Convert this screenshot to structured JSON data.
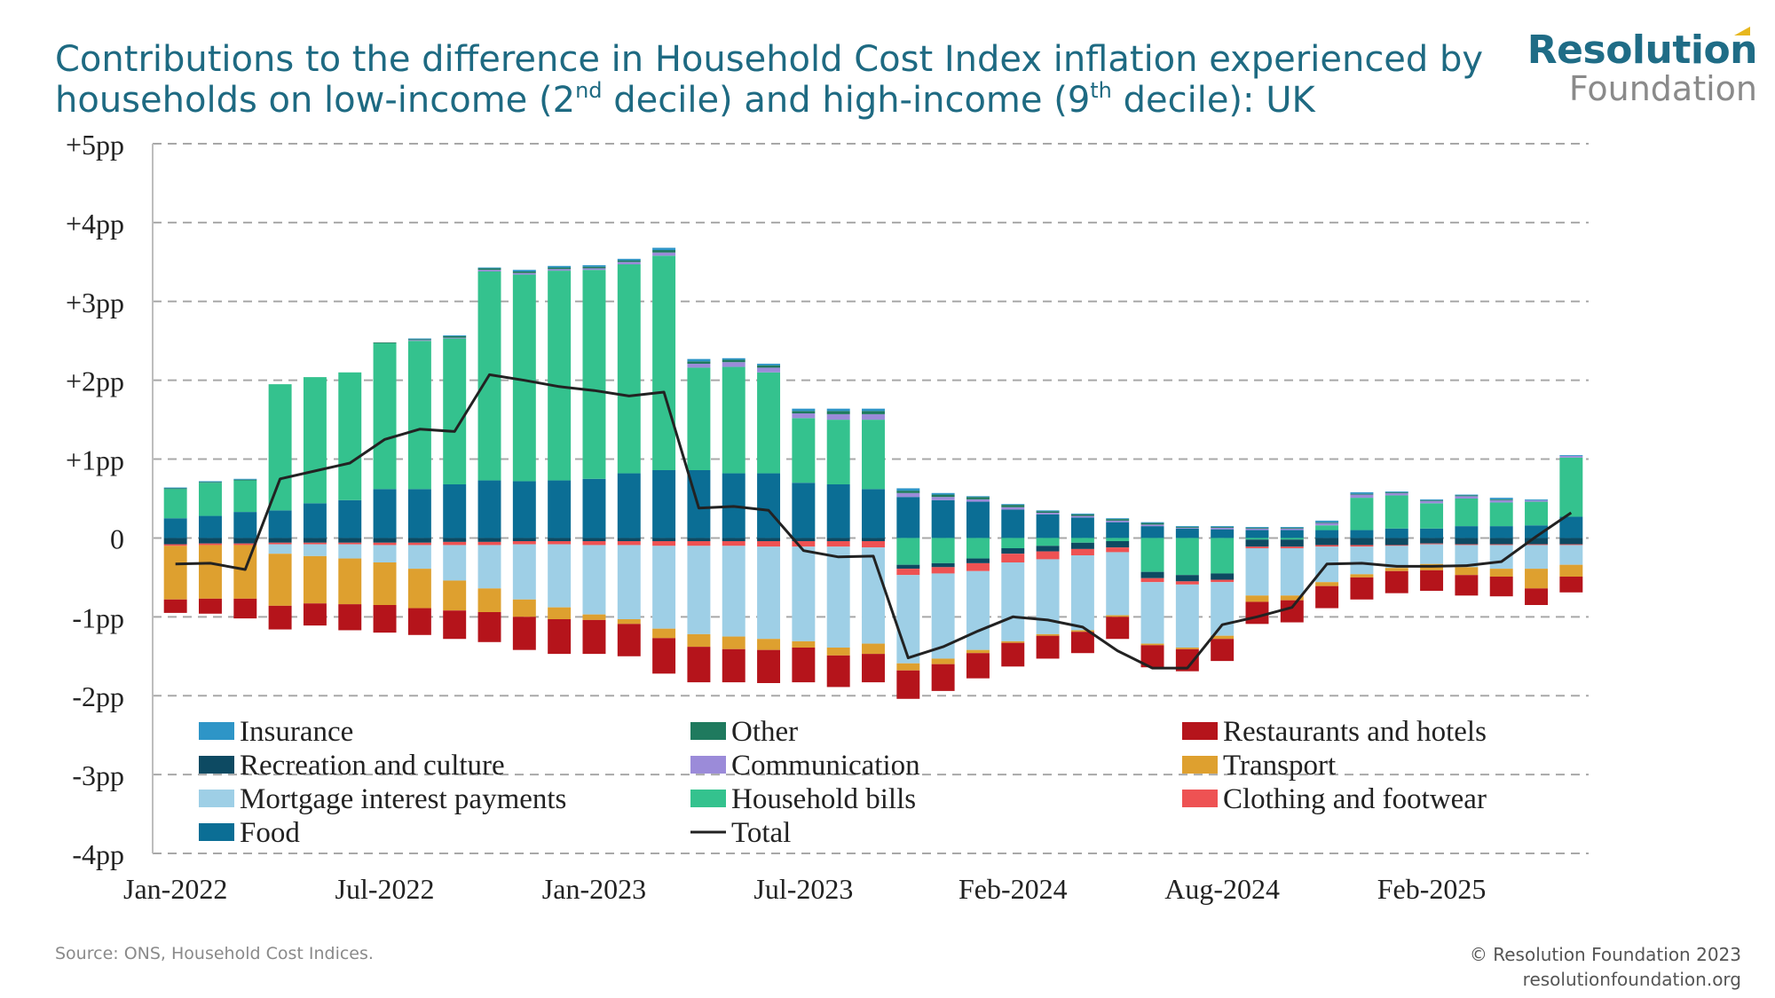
{
  "title": {
    "line1": "Contributions to the difference in Household Cost Index inflation experienced by",
    "line2_a": "households on low-income (2",
    "line2_sup1": "nd",
    "line2_b": " decile) and high-income (9",
    "line2_sup2": "th",
    "line2_c": " decile): UK"
  },
  "logo": {
    "line1": "Resolution",
    "line2": "Foundation"
  },
  "footer": {
    "source": "Source: ONS, Household Cost Indices.",
    "copyright": "© Resolution Foundation 2023",
    "url": "resolutionfoundation.org"
  },
  "chart_data": {
    "type": "bar",
    "stacked": true,
    "ylim": [
      -4,
      5
    ],
    "yticks": [
      5,
      4,
      3,
      2,
      1,
      0,
      -1,
      -2,
      -3,
      -4
    ],
    "ytick_labels": [
      "+5pp",
      "+4pp",
      "+3pp",
      "+2pp",
      "+1pp",
      "0",
      "-1pp",
      "-2pp",
      "-3pp",
      "-4pp"
    ],
    "xtick_labels": [
      {
        "index": 0,
        "label": "Jan-2022"
      },
      {
        "index": 6,
        "label": "Jul-2022"
      },
      {
        "index": 12,
        "label": "Jan-2023"
      },
      {
        "index": 18,
        "label": "Jul-2023"
      },
      {
        "index": 24,
        "label": "Feb-2024"
      },
      {
        "index": 30,
        "label": "Aug-2024"
      },
      {
        "index": 36,
        "label": "Feb-2025"
      }
    ],
    "grid": "horizontal-dashed",
    "legend_position": "bottom",
    "categories": [
      "Jan-2022",
      "Feb-2022",
      "Mar-2022",
      "Apr-2022",
      "May-2022",
      "Jun-2022",
      "Jul-2022",
      "Aug-2022",
      "Sep-2022",
      "Oct-2022",
      "Nov-2022",
      "Dec-2022",
      "Jan-2023",
      "Feb-2023",
      "Mar-2023",
      "Apr-2023",
      "May-2023",
      "Jun-2023",
      "Jul-2023",
      "Aug-2023",
      "Sep-2023",
      "Oct-2023",
      "Nov-2023",
      "Dec-2023",
      "Jan-2024",
      "Feb-2024",
      "Mar-2024",
      "Apr-2024",
      "May-2024",
      "Jun-2024",
      "Jul-2024",
      "Aug-2024",
      "Sep-2024",
      "Oct-2024",
      "Nov-2024",
      "Dec-2024",
      "Jan-2025",
      "Feb-2025",
      "Mar-2025",
      "Apr-2025",
      "May-2025"
    ],
    "stack_order": [
      "food",
      "household_bills",
      "communication",
      "other",
      "recreation",
      "insurance",
      "clothing",
      "mortgage",
      "transport",
      "restaurants"
    ],
    "series": [
      {
        "key": "insurance",
        "name": "Insurance",
        "color": "#2e95c7",
        "values": [
          0.01,
          0.01,
          0.01,
          0,
          0,
          0,
          0,
          0.01,
          0.01,
          0.01,
          0.02,
          0.02,
          0.02,
          0.02,
          0.03,
          0.03,
          0.02,
          0.02,
          0.03,
          0.03,
          0.03,
          0.03,
          0.02,
          0.01,
          0.01,
          0.01,
          0.01,
          0.01,
          0.01,
          0.01,
          0.01,
          0.01,
          0.01,
          0.02,
          0.02,
          0.01,
          0.01,
          0.01,
          0.02,
          0.01,
          0.01
        ]
      },
      {
        "key": "other",
        "name": "Other",
        "color": "#1f7a5e",
        "values": [
          0.01,
          0.01,
          0.01,
          0,
          0,
          0,
          0.01,
          0.01,
          0.02,
          0.02,
          0.02,
          0.02,
          0.02,
          0.02,
          0.03,
          0.03,
          0.03,
          0.03,
          0.03,
          0.04,
          0.04,
          0.03,
          0.03,
          0.03,
          0.03,
          0.02,
          0.02,
          0.02,
          0.02,
          0.01,
          0.01,
          0.01,
          0.01,
          0.01,
          0.01,
          0.01,
          0.01,
          0.01,
          0.01,
          0,
          0
        ]
      },
      {
        "key": "restaurants",
        "name": "Restaurants and hotels",
        "color": "#b5141b",
        "values": [
          -0.17,
          -0.19,
          -0.25,
          -0.3,
          -0.28,
          -0.33,
          -0.35,
          -0.34,
          -0.36,
          -0.38,
          -0.42,
          -0.44,
          -0.43,
          -0.41,
          -0.45,
          -0.45,
          -0.42,
          -0.42,
          -0.44,
          -0.4,
          -0.36,
          -0.36,
          -0.34,
          -0.32,
          -0.3,
          -0.29,
          -0.27,
          -0.28,
          -0.28,
          -0.28,
          -0.28,
          -0.28,
          -0.28,
          -0.28,
          -0.28,
          -0.28,
          -0.26,
          -0.26,
          -0.25,
          -0.21,
          -0.2
        ]
      },
      {
        "key": "recreation",
        "name": "Recreation and culture",
        "color": "#0d4a62",
        "values": [
          -0.08,
          -0.07,
          -0.07,
          -0.06,
          -0.06,
          -0.06,
          -0.06,
          -0.06,
          -0.05,
          -0.05,
          -0.04,
          -0.04,
          -0.04,
          -0.04,
          -0.04,
          -0.04,
          -0.04,
          -0.04,
          -0.04,
          -0.04,
          -0.04,
          -0.05,
          -0.05,
          -0.06,
          -0.07,
          -0.07,
          -0.08,
          -0.08,
          -0.08,
          -0.08,
          -0.08,
          -0.09,
          -0.09,
          -0.09,
          -0.09,
          -0.09,
          -0.07,
          -0.08,
          -0.08,
          -0.08,
          -0.08
        ]
      },
      {
        "key": "communication",
        "name": "Communication",
        "color": "#9b8bd9",
        "values": [
          0,
          0,
          0,
          0,
          0,
          0,
          0,
          0.01,
          0.01,
          0.02,
          0.02,
          0.02,
          0.02,
          0.03,
          0.04,
          0.05,
          0.06,
          0.06,
          0.06,
          0.07,
          0.07,
          0.05,
          0.04,
          0.03,
          0.03,
          0.02,
          0.02,
          0.02,
          0.02,
          0.01,
          0.02,
          0.02,
          0.02,
          0.03,
          0.04,
          0.03,
          0.03,
          0.03,
          0.03,
          0.02,
          0.02
        ]
      },
      {
        "key": "transport",
        "name": "Transport",
        "color": "#dea02f",
        "values": [
          -0.68,
          -0.68,
          -0.68,
          -0.66,
          -0.6,
          -0.58,
          -0.54,
          -0.5,
          -0.38,
          -0.3,
          -0.22,
          -0.15,
          -0.07,
          -0.06,
          -0.12,
          -0.16,
          -0.16,
          -0.14,
          -0.08,
          -0.1,
          -0.13,
          -0.09,
          -0.07,
          -0.04,
          -0.02,
          -0.02,
          -0.02,
          -0.02,
          -0.02,
          -0.02,
          -0.04,
          -0.08,
          -0.06,
          -0.05,
          -0.04,
          -0.04,
          -0.08,
          -0.1,
          -0.1,
          -0.25,
          -0.15
        ]
      },
      {
        "key": "mortgage",
        "name": "Mortgage interest payments",
        "color": "#9ecfe6",
        "values": [
          0,
          0,
          0,
          -0.12,
          -0.15,
          -0.18,
          -0.22,
          -0.3,
          -0.45,
          -0.55,
          -0.7,
          -0.8,
          -0.88,
          -0.94,
          -1.05,
          -1.12,
          -1.15,
          -1.17,
          -1.2,
          -1.28,
          -1.22,
          -1.12,
          -1.08,
          -1.0,
          -1.0,
          -0.95,
          -0.95,
          -0.8,
          -0.78,
          -0.8,
          -0.68,
          -0.6,
          -0.6,
          -0.45,
          -0.35,
          -0.28,
          -0.25,
          -0.28,
          -0.3,
          -0.3,
          -0.25
        ]
      },
      {
        "key": "household_bills",
        "name": "Household bills",
        "color": "#34c28e",
        "values": [
          0.37,
          0.42,
          0.4,
          1.6,
          1.6,
          1.62,
          1.85,
          1.88,
          1.85,
          2.65,
          2.62,
          2.66,
          2.65,
          2.65,
          2.72,
          1.3,
          1.35,
          1.28,
          0.82,
          0.82,
          0.88,
          -0.34,
          -0.32,
          -0.26,
          -0.13,
          -0.1,
          -0.06,
          -0.04,
          -0.43,
          -0.47,
          -0.45,
          -0.02,
          -0.02,
          0.06,
          0.41,
          0.42,
          0.32,
          0.35,
          0.3,
          0.3,
          0.75
        ]
      },
      {
        "key": "clothing",
        "name": "Clothing and footwear",
        "color": "#ee5253",
        "values": [
          -0.02,
          -0.02,
          -0.02,
          -0.02,
          -0.02,
          -0.02,
          -0.03,
          -0.03,
          -0.04,
          -0.04,
          -0.04,
          -0.04,
          -0.05,
          -0.05,
          -0.06,
          -0.06,
          -0.06,
          -0.07,
          -0.07,
          -0.07,
          -0.08,
          -0.08,
          -0.08,
          -0.1,
          -0.11,
          -0.1,
          -0.08,
          -0.06,
          -0.05,
          -0.04,
          -0.03,
          -0.02,
          -0.02,
          -0.02,
          -0.02,
          -0.01,
          -0.01,
          -0.01,
          -0.01,
          -0.01,
          -0.01
        ]
      },
      {
        "key": "food",
        "name": "Food",
        "color": "#0b6e95",
        "values": [
          0.25,
          0.28,
          0.33,
          0.35,
          0.44,
          0.48,
          0.62,
          0.62,
          0.68,
          0.73,
          0.72,
          0.73,
          0.75,
          0.82,
          0.86,
          0.86,
          0.82,
          0.82,
          0.7,
          0.68,
          0.62,
          0.52,
          0.48,
          0.46,
          0.36,
          0.3,
          0.26,
          0.2,
          0.15,
          0.12,
          0.11,
          0.1,
          0.1,
          0.1,
          0.1,
          0.12,
          0.12,
          0.15,
          0.15,
          0.16,
          0.27
        ]
      },
      {
        "key": "total",
        "name": "Total",
        "color": "#222222",
        "type": "line",
        "values": [
          -0.33,
          -0.32,
          -0.4,
          0.75,
          0.85,
          0.95,
          1.25,
          1.38,
          1.35,
          2.07,
          2.0,
          1.92,
          1.87,
          1.8,
          1.85,
          0.38,
          0.4,
          0.35,
          -0.16,
          -0.24,
          -0.23,
          -1.52,
          -1.38,
          -1.18,
          -1.0,
          -1.04,
          -1.13,
          -1.43,
          -1.65,
          -1.65,
          -1.1,
          -1.0,
          -0.88,
          -0.33,
          -0.32,
          -0.36,
          -0.36,
          -0.35,
          -0.3,
          0.02,
          0.32
        ]
      }
    ],
    "legend": [
      {
        "key": "insurance",
        "label": "Insurance",
        "column": 0,
        "row": 0
      },
      {
        "key": "recreation",
        "label": "Recreation and culture",
        "column": 0,
        "row": 1
      },
      {
        "key": "mortgage",
        "label": "Mortgage interest payments",
        "column": 0,
        "row": 2
      },
      {
        "key": "food",
        "label": "Food",
        "column": 0,
        "row": 3
      },
      {
        "key": "other",
        "label": "Other",
        "column": 1,
        "row": 0
      },
      {
        "key": "communication",
        "label": "Communication",
        "column": 1,
        "row": 1
      },
      {
        "key": "household_bills",
        "label": "Household bills",
        "column": 1,
        "row": 2
      },
      {
        "key": "total",
        "label": "Total",
        "column": 1,
        "row": 3
      },
      {
        "key": "restaurants",
        "label": "Restaurants and hotels",
        "column": 2,
        "row": 0
      },
      {
        "key": "transport",
        "label": "Transport",
        "column": 2,
        "row": 1
      },
      {
        "key": "clothing",
        "label": "Clothing and footwear",
        "column": 2,
        "row": 2
      }
    ]
  }
}
